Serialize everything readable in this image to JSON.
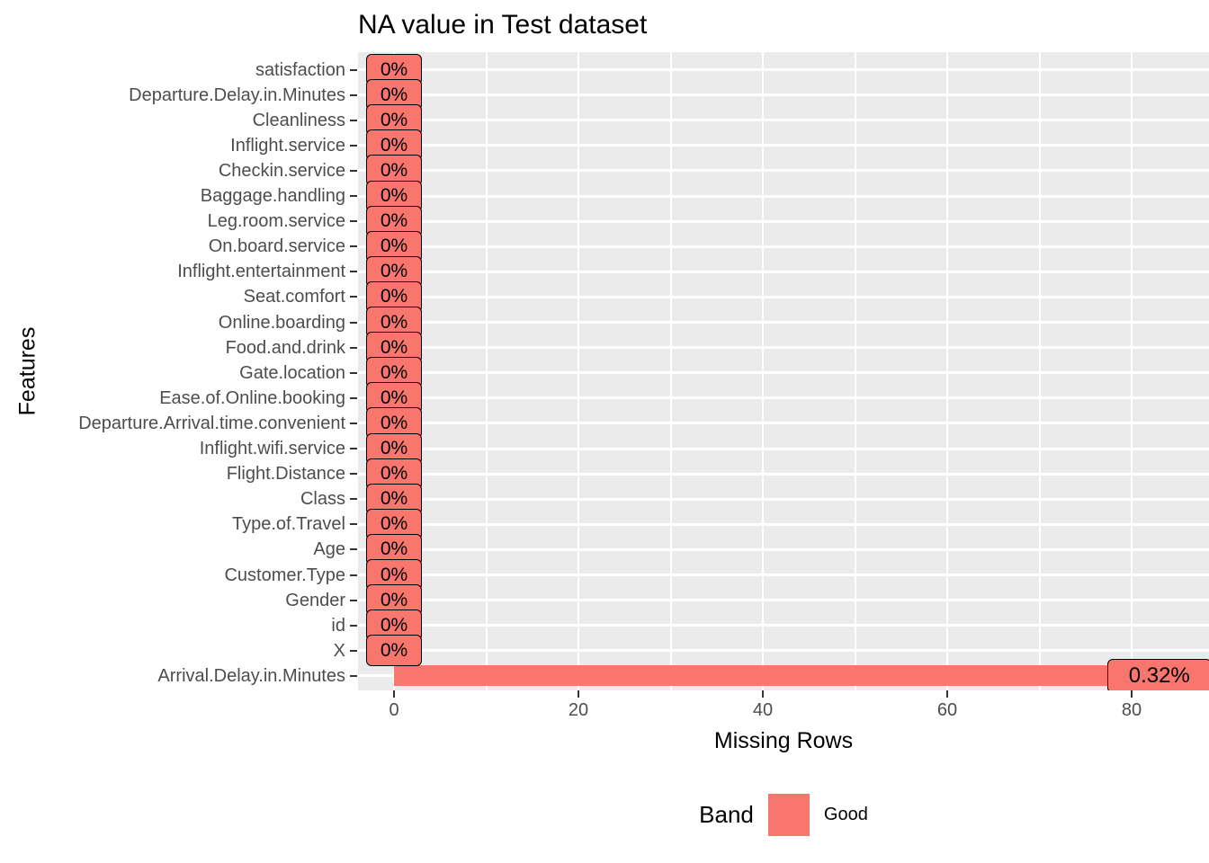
{
  "chart_data": {
    "type": "bar",
    "orientation": "horizontal",
    "title": "NA value in Test dataset",
    "xlabel": "Missing Rows",
    "ylabel": "Features",
    "x_ticks": [
      0,
      20,
      40,
      60,
      80
    ],
    "x_minor_ticks": [
      10,
      30,
      50,
      70
    ],
    "xlim": [
      -4,
      88.5
    ],
    "grid": true,
    "features": [
      {
        "name": "satisfaction",
        "value": 0,
        "label": "0%"
      },
      {
        "name": "Departure.Delay.in.Minutes",
        "value": 0,
        "label": "0%"
      },
      {
        "name": "Cleanliness",
        "value": 0,
        "label": "0%"
      },
      {
        "name": "Inflight.service",
        "value": 0,
        "label": "0%"
      },
      {
        "name": "Checkin.service",
        "value": 0,
        "label": "0%"
      },
      {
        "name": "Baggage.handling",
        "value": 0,
        "label": "0%"
      },
      {
        "name": "Leg.room.service",
        "value": 0,
        "label": "0%"
      },
      {
        "name": "On.board.service",
        "value": 0,
        "label": "0%"
      },
      {
        "name": "Inflight.entertainment",
        "value": 0,
        "label": "0%"
      },
      {
        "name": "Seat.comfort",
        "value": 0,
        "label": "0%"
      },
      {
        "name": "Online.boarding",
        "value": 0,
        "label": "0%"
      },
      {
        "name": "Food.and.drink",
        "value": 0,
        "label": "0%"
      },
      {
        "name": "Gate.location",
        "value": 0,
        "label": "0%"
      },
      {
        "name": "Ease.of.Online.booking",
        "value": 0,
        "label": "0%"
      },
      {
        "name": "Departure.Arrival.time.convenient",
        "value": 0,
        "label": "0%"
      },
      {
        "name": "Inflight.wifi.service",
        "value": 0,
        "label": "0%"
      },
      {
        "name": "Flight.Distance",
        "value": 0,
        "label": "0%"
      },
      {
        "name": "Class",
        "value": 0,
        "label": "0%"
      },
      {
        "name": "Type.of.Travel",
        "value": 0,
        "label": "0%"
      },
      {
        "name": "Age",
        "value": 0,
        "label": "0%"
      },
      {
        "name": "Customer.Type",
        "value": 0,
        "label": "0%"
      },
      {
        "name": "Gender",
        "value": 0,
        "label": "0%"
      },
      {
        "name": "id",
        "value": 0,
        "label": "0%"
      },
      {
        "name": "X",
        "value": 0,
        "label": "0%"
      },
      {
        "name": "Arrival.Delay.in.Minutes",
        "value": 83,
        "label": "0.32%"
      }
    ],
    "legend": {
      "title": "Band",
      "position": "bottom",
      "entries": [
        {
          "label": "Good",
          "color": "#F8766D"
        }
      ]
    },
    "colors": {
      "bar": "#F8766D",
      "panel_background": "#EBEBEB",
      "gridline": "#FFFFFF",
      "axis_text": "#4D4D4D",
      "tick_mark": "#333333",
      "text": "#000000"
    }
  }
}
